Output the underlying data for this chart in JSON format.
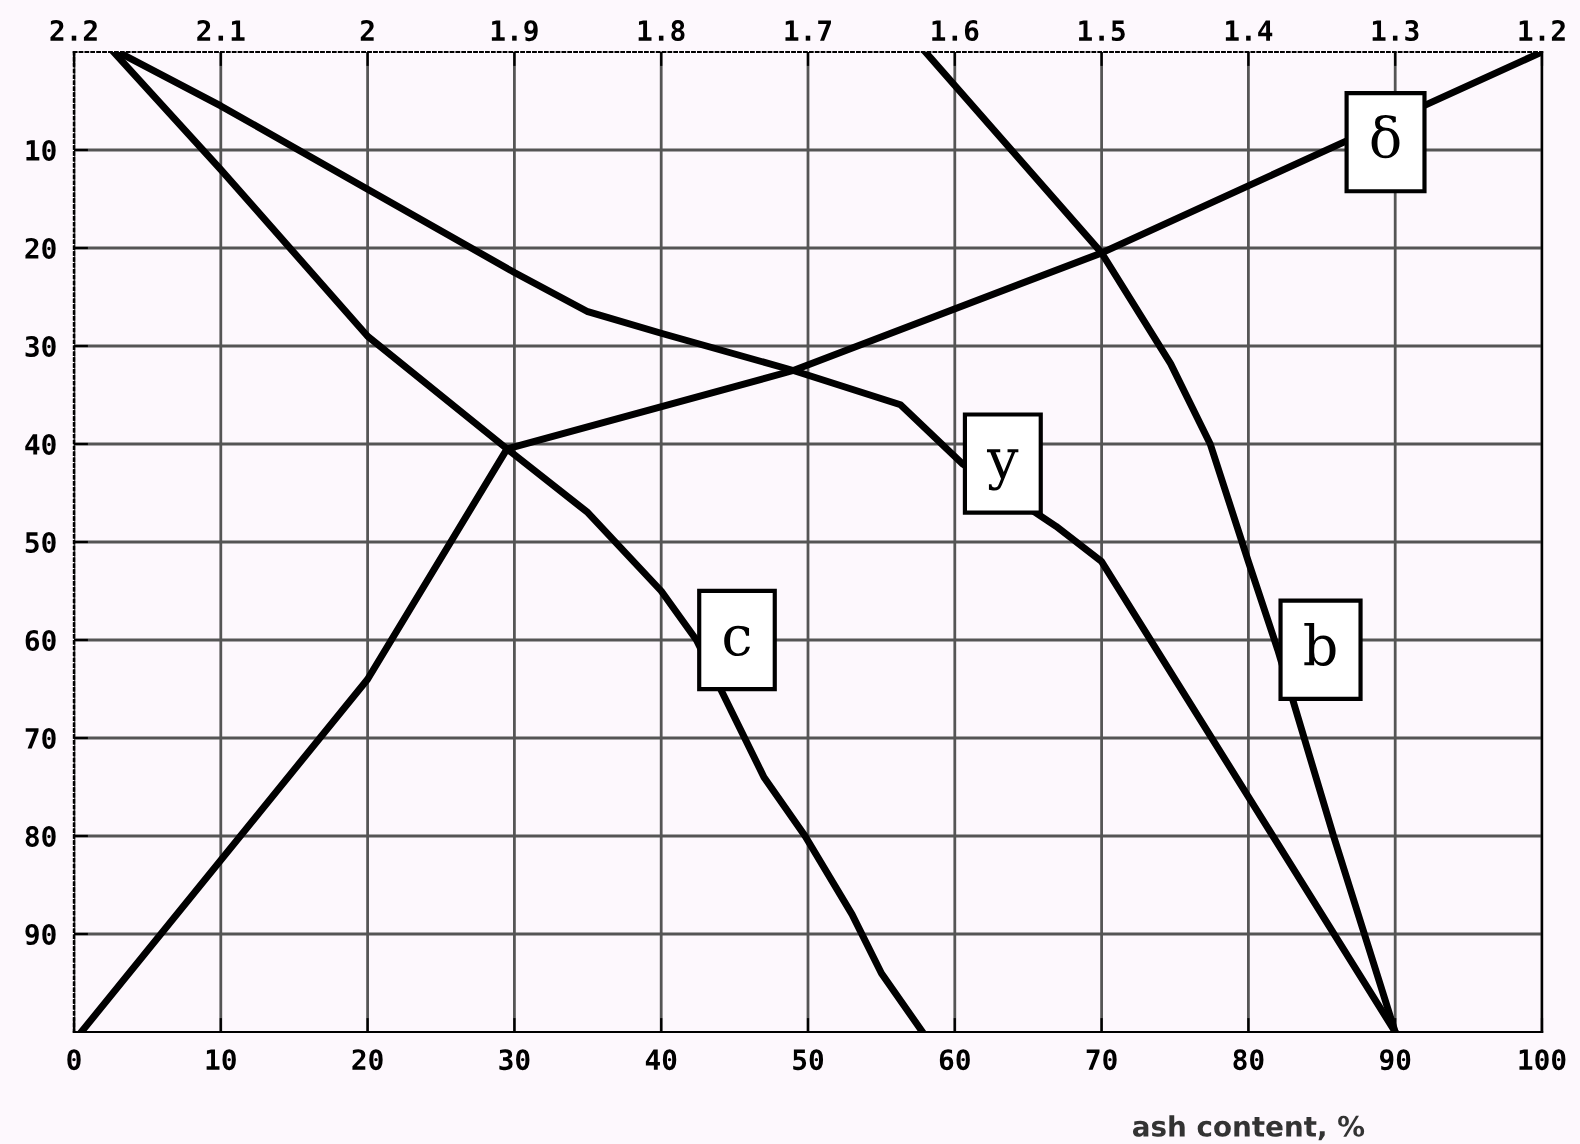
{
  "chart_data": {
    "type": "line",
    "xlabel": "ash content, %",
    "xlim": [
      0,
      100
    ],
    "xticks": [
      0,
      10,
      20,
      30,
      40,
      50,
      60,
      70,
      80,
      90,
      100
    ],
    "x2lim": [
      2.2,
      1.2
    ],
    "x2ticks": [
      2.2,
      2.1,
      2,
      1.9,
      1.8,
      1.7,
      1.6,
      1.5,
      1.4,
      1.3,
      1.2
    ],
    "ylim": [
      100,
      0
    ],
    "yticks": [
      10,
      20,
      30,
      40,
      50,
      60,
      70,
      80,
      90
    ],
    "grid": true,
    "legend": false,
    "marker": "none",
    "line_style": "solid",
    "series": [
      {
        "color": "#000000",
        "x": [
          0.5,
          20,
          29.5,
          49,
          70,
          86.5,
          100
        ],
        "values": [
          100,
          64,
          40.5,
          32.5,
          20.5,
          9.2,
          0
        ]
      },
      {
        "color": "#000000",
        "x": [
          3,
          10,
          20,
          30,
          35,
          40,
          49,
          56.3,
          60.5,
          66.9,
          70,
          90
        ],
        "values": [
          0,
          5.5,
          14,
          22.5,
          26.5,
          28.7,
          32.5,
          36,
          42,
          48.4,
          52,
          100
        ]
      },
      {
        "color": "#000000",
        "x": [
          2.7,
          10,
          20,
          29.5,
          35,
          40,
          42.4,
          47,
          49.8,
          53,
          55,
          57.8
        ],
        "values": [
          0,
          12,
          29,
          40.5,
          47,
          55,
          60,
          74,
          80,
          88,
          94,
          100
        ]
      },
      {
        "color": "#000000",
        "x": [
          58,
          70,
          74.7,
          77.4,
          80,
          82,
          85.8,
          90
        ],
        "values": [
          0,
          20.5,
          31.8,
          40,
          52,
          61,
          80,
          100
        ]
      }
    ],
    "annotations": [
      {
        "text": "δ",
        "x": 86.5,
        "y": 9.2
      },
      {
        "text": "y",
        "x": 60.5,
        "y": 42
      },
      {
        "text": "c",
        "x": 42.4,
        "y": 60
      },
      {
        "text": "b",
        "x": 82,
        "y": 61
      }
    ]
  }
}
